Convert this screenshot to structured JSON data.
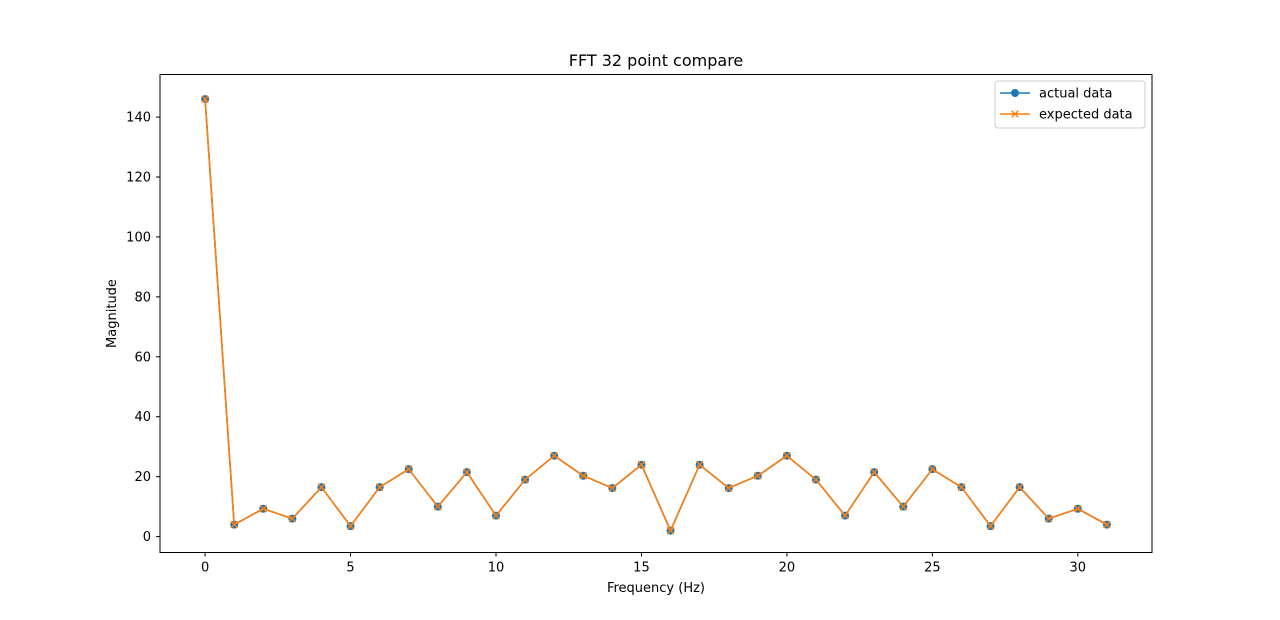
{
  "chart_data": {
    "type": "line",
    "title": "FFT 32 point compare",
    "xlabel": "Frequency (Hz)",
    "ylabel": "Magnitude",
    "xlim": [
      -1.55,
      32.55
    ],
    "ylim": [
      -5.3,
      154.2
    ],
    "xticks": [
      0,
      5,
      10,
      15,
      20,
      25,
      30
    ],
    "yticks": [
      0,
      20,
      40,
      60,
      80,
      100,
      120,
      140
    ],
    "grid": false,
    "legend_position": "top-right",
    "x": [
      0,
      1,
      2,
      3,
      4,
      5,
      6,
      7,
      8,
      9,
      10,
      11,
      12,
      13,
      14,
      15,
      16,
      17,
      18,
      19,
      20,
      21,
      22,
      23,
      24,
      25,
      26,
      27,
      28,
      29,
      30,
      31
    ],
    "series": [
      {
        "name": "actual data",
        "color": "#1f77b4",
        "marker": "circle",
        "values": [
          146,
          4,
          9.3,
          6,
          16.5,
          3.5,
          16.5,
          22.5,
          10,
          21.5,
          7,
          19,
          27,
          20.3,
          16.2,
          24,
          2,
          24,
          16.2,
          20.3,
          27,
          19,
          7,
          21.5,
          10,
          22.5,
          16.5,
          3.5,
          16.5,
          6,
          9.3,
          4
        ]
      },
      {
        "name": "expected data",
        "color": "#ff7f0e",
        "marker": "x",
        "values": [
          146,
          4,
          9.3,
          6,
          16.5,
          3.5,
          16.5,
          22.5,
          10,
          21.5,
          7,
          19,
          27,
          20.3,
          16.2,
          24,
          2,
          24,
          16.2,
          20.3,
          27,
          19,
          7,
          21.5,
          10,
          22.5,
          16.5,
          3.5,
          16.5,
          6,
          9.3,
          4
        ]
      }
    ]
  }
}
